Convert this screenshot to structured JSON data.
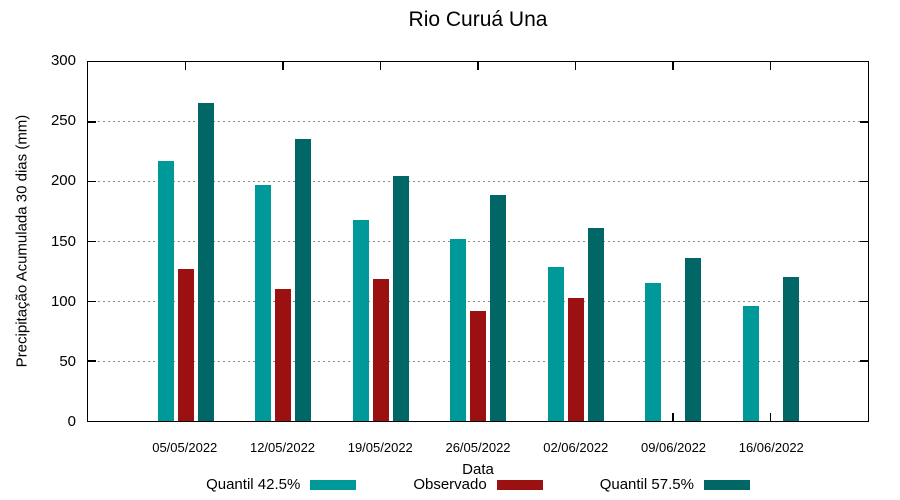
{
  "title": "Rio Curuá Una",
  "chart_data": {
    "type": "bar",
    "title": "Rio Curuá Una",
    "xlabel": "Data",
    "ylabel": "Precipitação Acumulada 30 dias (mm)",
    "ylim": [
      0,
      300
    ],
    "yticks": [
      0,
      50,
      100,
      150,
      200,
      250,
      300
    ],
    "grid": true,
    "grid_style": "dotted",
    "legend_position": "bottom",
    "categories": [
      "05/05/2022",
      "12/05/2022",
      "19/05/2022",
      "26/05/2022",
      "02/06/2022",
      "09/06/2022",
      "16/06/2022"
    ],
    "series": [
      {
        "name": "Quantil 42.5%",
        "color": "#009999",
        "values": [
          217,
          197,
          168,
          152,
          129,
          115,
          96
        ]
      },
      {
        "name": "Observado",
        "color": "#9b1111",
        "values": [
          127,
          110,
          119,
          92,
          103,
          null,
          null
        ]
      },
      {
        "name": "Quantil 57.5%",
        "color": "#006666",
        "values": [
          266,
          236,
          205,
          189,
          161,
          136,
          120
        ]
      }
    ]
  },
  "colors": {
    "axis": "#000000",
    "grid": "#8a8a8a",
    "text": "#000000",
    "background": "#ffffff"
  }
}
